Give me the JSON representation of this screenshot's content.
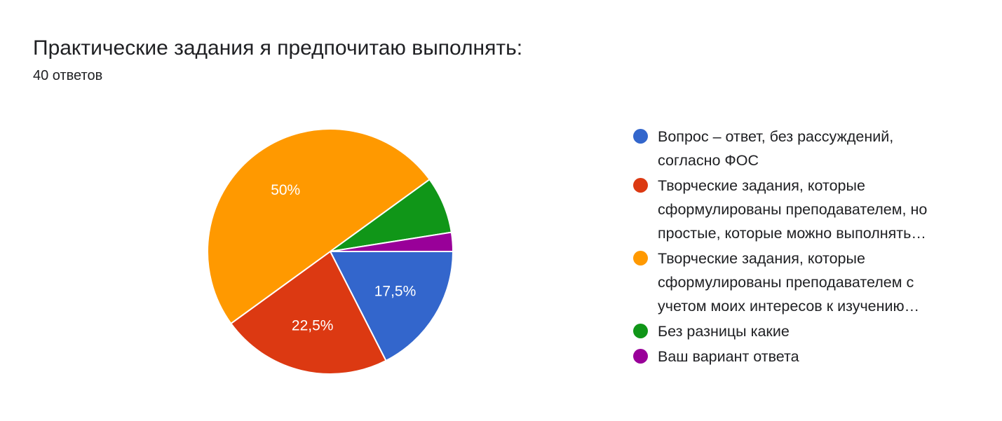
{
  "title": "Практические задания я предпочитаю выполнять:",
  "subtitle": "40 ответов",
  "colors": {
    "blue": "#3366cc",
    "red": "#dc3912",
    "orange": "#ff9900",
    "green": "#109618",
    "purple": "#990099"
  },
  "chart_data": {
    "type": "pie",
    "series": [
      {
        "value": 17.5,
        "label": "17,5%",
        "color": "#3366cc"
      },
      {
        "value": 22.5,
        "label": "22,5%",
        "color": "#dc3912"
      },
      {
        "value": 50,
        "label": "50%",
        "color": "#ff9900"
      },
      {
        "value": 7.5,
        "label": "",
        "color": "#109618"
      },
      {
        "value": 2.5,
        "label": "",
        "color": "#990099"
      }
    ],
    "legend": [
      {
        "lines": [
          "Вопрос – ответ, без рассуждений,",
          "согласно ФОС"
        ],
        "color": "#3366cc"
      },
      {
        "lines": [
          "Творческие задания, которые",
          "сформулированы преподавателем, но",
          "простые, которые можно выполнять…"
        ],
        "color": "#dc3912"
      },
      {
        "lines": [
          "Творческие задания, которые",
          "сформулированы преподавателем с",
          "учетом моих интересов к изучению…"
        ],
        "color": "#ff9900"
      },
      {
        "lines": [
          "Без разницы какие"
        ],
        "color": "#109618"
      },
      {
        "lines": [
          "Ваш вариант ответа"
        ],
        "color": "#990099"
      }
    ],
    "legend_position": "right"
  }
}
